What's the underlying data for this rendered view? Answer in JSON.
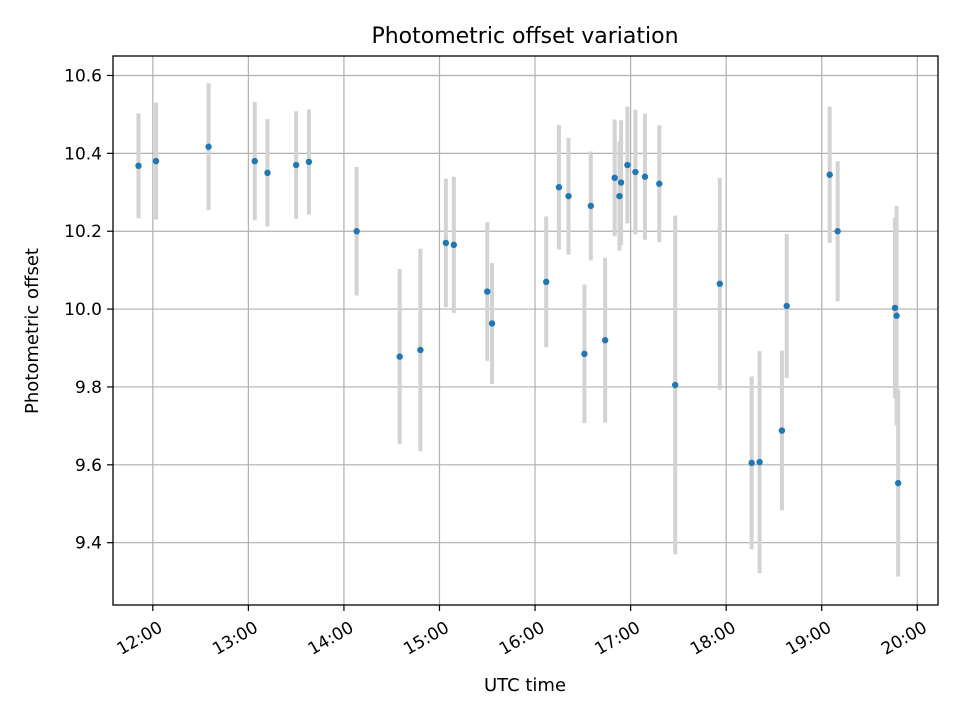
{
  "chart_data": {
    "type": "scatter",
    "title": "Photometric offset variation",
    "xlabel": "UTC time",
    "ylabel": "Photometric offset",
    "xlim": [
      "11:35",
      "20:13"
    ],
    "ylim": [
      9.24,
      10.65
    ],
    "x_ticks": [
      "12:00",
      "13:00",
      "14:00",
      "15:00",
      "16:00",
      "17:00",
      "18:00",
      "19:00",
      "20:00"
    ],
    "y_ticks": [
      "9.4",
      "9.6",
      "9.8",
      "10.0",
      "10.2",
      "10.4",
      "10.6"
    ],
    "grid": true,
    "series": [
      {
        "marker_color": "#1f77b4",
        "errorbar_color": "#d3d3d3",
        "points": [
          {
            "x": "11:51",
            "y": 10.368,
            "err": 0.135
          },
          {
            "x": "12:02",
            "y": 10.38,
            "err": 0.15
          },
          {
            "x": "12:35",
            "y": 10.417,
            "err": 0.163
          },
          {
            "x": "13:04",
            "y": 10.38,
            "err": 0.152
          },
          {
            "x": "13:12",
            "y": 10.35,
            "err": 0.138
          },
          {
            "x": "13:30",
            "y": 10.37,
            "err": 0.138
          },
          {
            "x": "13:38",
            "y": 10.378,
            "err": 0.135
          },
          {
            "x": "14:08",
            "y": 10.2,
            "err": 0.165
          },
          {
            "x": "14:35",
            "y": 9.878,
            "err": 0.225
          },
          {
            "x": "14:48",
            "y": 9.895,
            "err": 0.26
          },
          {
            "x": "15:04",
            "y": 10.17,
            "err": 0.165
          },
          {
            "x": "15:09",
            "y": 10.165,
            "err": 0.175
          },
          {
            "x": "15:30",
            "y": 10.045,
            "err": 0.178
          },
          {
            "x": "15:33",
            "y": 9.963,
            "err": 0.155
          },
          {
            "x": "16:07",
            "y": 10.07,
            "err": 0.168
          },
          {
            "x": "16:15",
            "y": 10.313,
            "err": 0.16
          },
          {
            "x": "16:21",
            "y": 10.29,
            "err": 0.15
          },
          {
            "x": "16:31",
            "y": 9.885,
            "err": 0.178
          },
          {
            "x": "16:35",
            "y": 10.265,
            "err": 0.14
          },
          {
            "x": "16:44",
            "y": 9.92,
            "err": 0.212
          },
          {
            "x": "16:50",
            "y": 10.337,
            "err": 0.15
          },
          {
            "x": "16:53",
            "y": 10.29,
            "err": 0.14
          },
          {
            "x": "16:54",
            "y": 10.325,
            "err": 0.16
          },
          {
            "x": "16:58",
            "y": 10.37,
            "err": 0.15
          },
          {
            "x": "17:03",
            "y": 10.352,
            "err": 0.16
          },
          {
            "x": "17:09",
            "y": 10.34,
            "err": 0.162
          },
          {
            "x": "17:18",
            "y": 10.322,
            "err": 0.15
          },
          {
            "x": "17:28",
            "y": 9.805,
            "err": 0.435
          },
          {
            "x": "17:56",
            "y": 10.065,
            "err": 0.272
          },
          {
            "x": "18:16",
            "y": 9.605,
            "err": 0.222
          },
          {
            "x": "18:21",
            "y": 9.607,
            "err": 0.285
          },
          {
            "x": "18:35",
            "y": 9.688,
            "err": 0.205
          },
          {
            "x": "18:38",
            "y": 10.008,
            "err": 0.185
          },
          {
            "x": "19:05",
            "y": 10.345,
            "err": 0.175
          },
          {
            "x": "19:10",
            "y": 10.2,
            "err": 0.18
          },
          {
            "x": "19:46",
            "y": 10.003,
            "err": 0.232
          },
          {
            "x": "19:47",
            "y": 9.983,
            "err": 0.282
          },
          {
            "x": "19:48",
            "y": 9.553,
            "err": 0.24
          }
        ]
      }
    ]
  }
}
